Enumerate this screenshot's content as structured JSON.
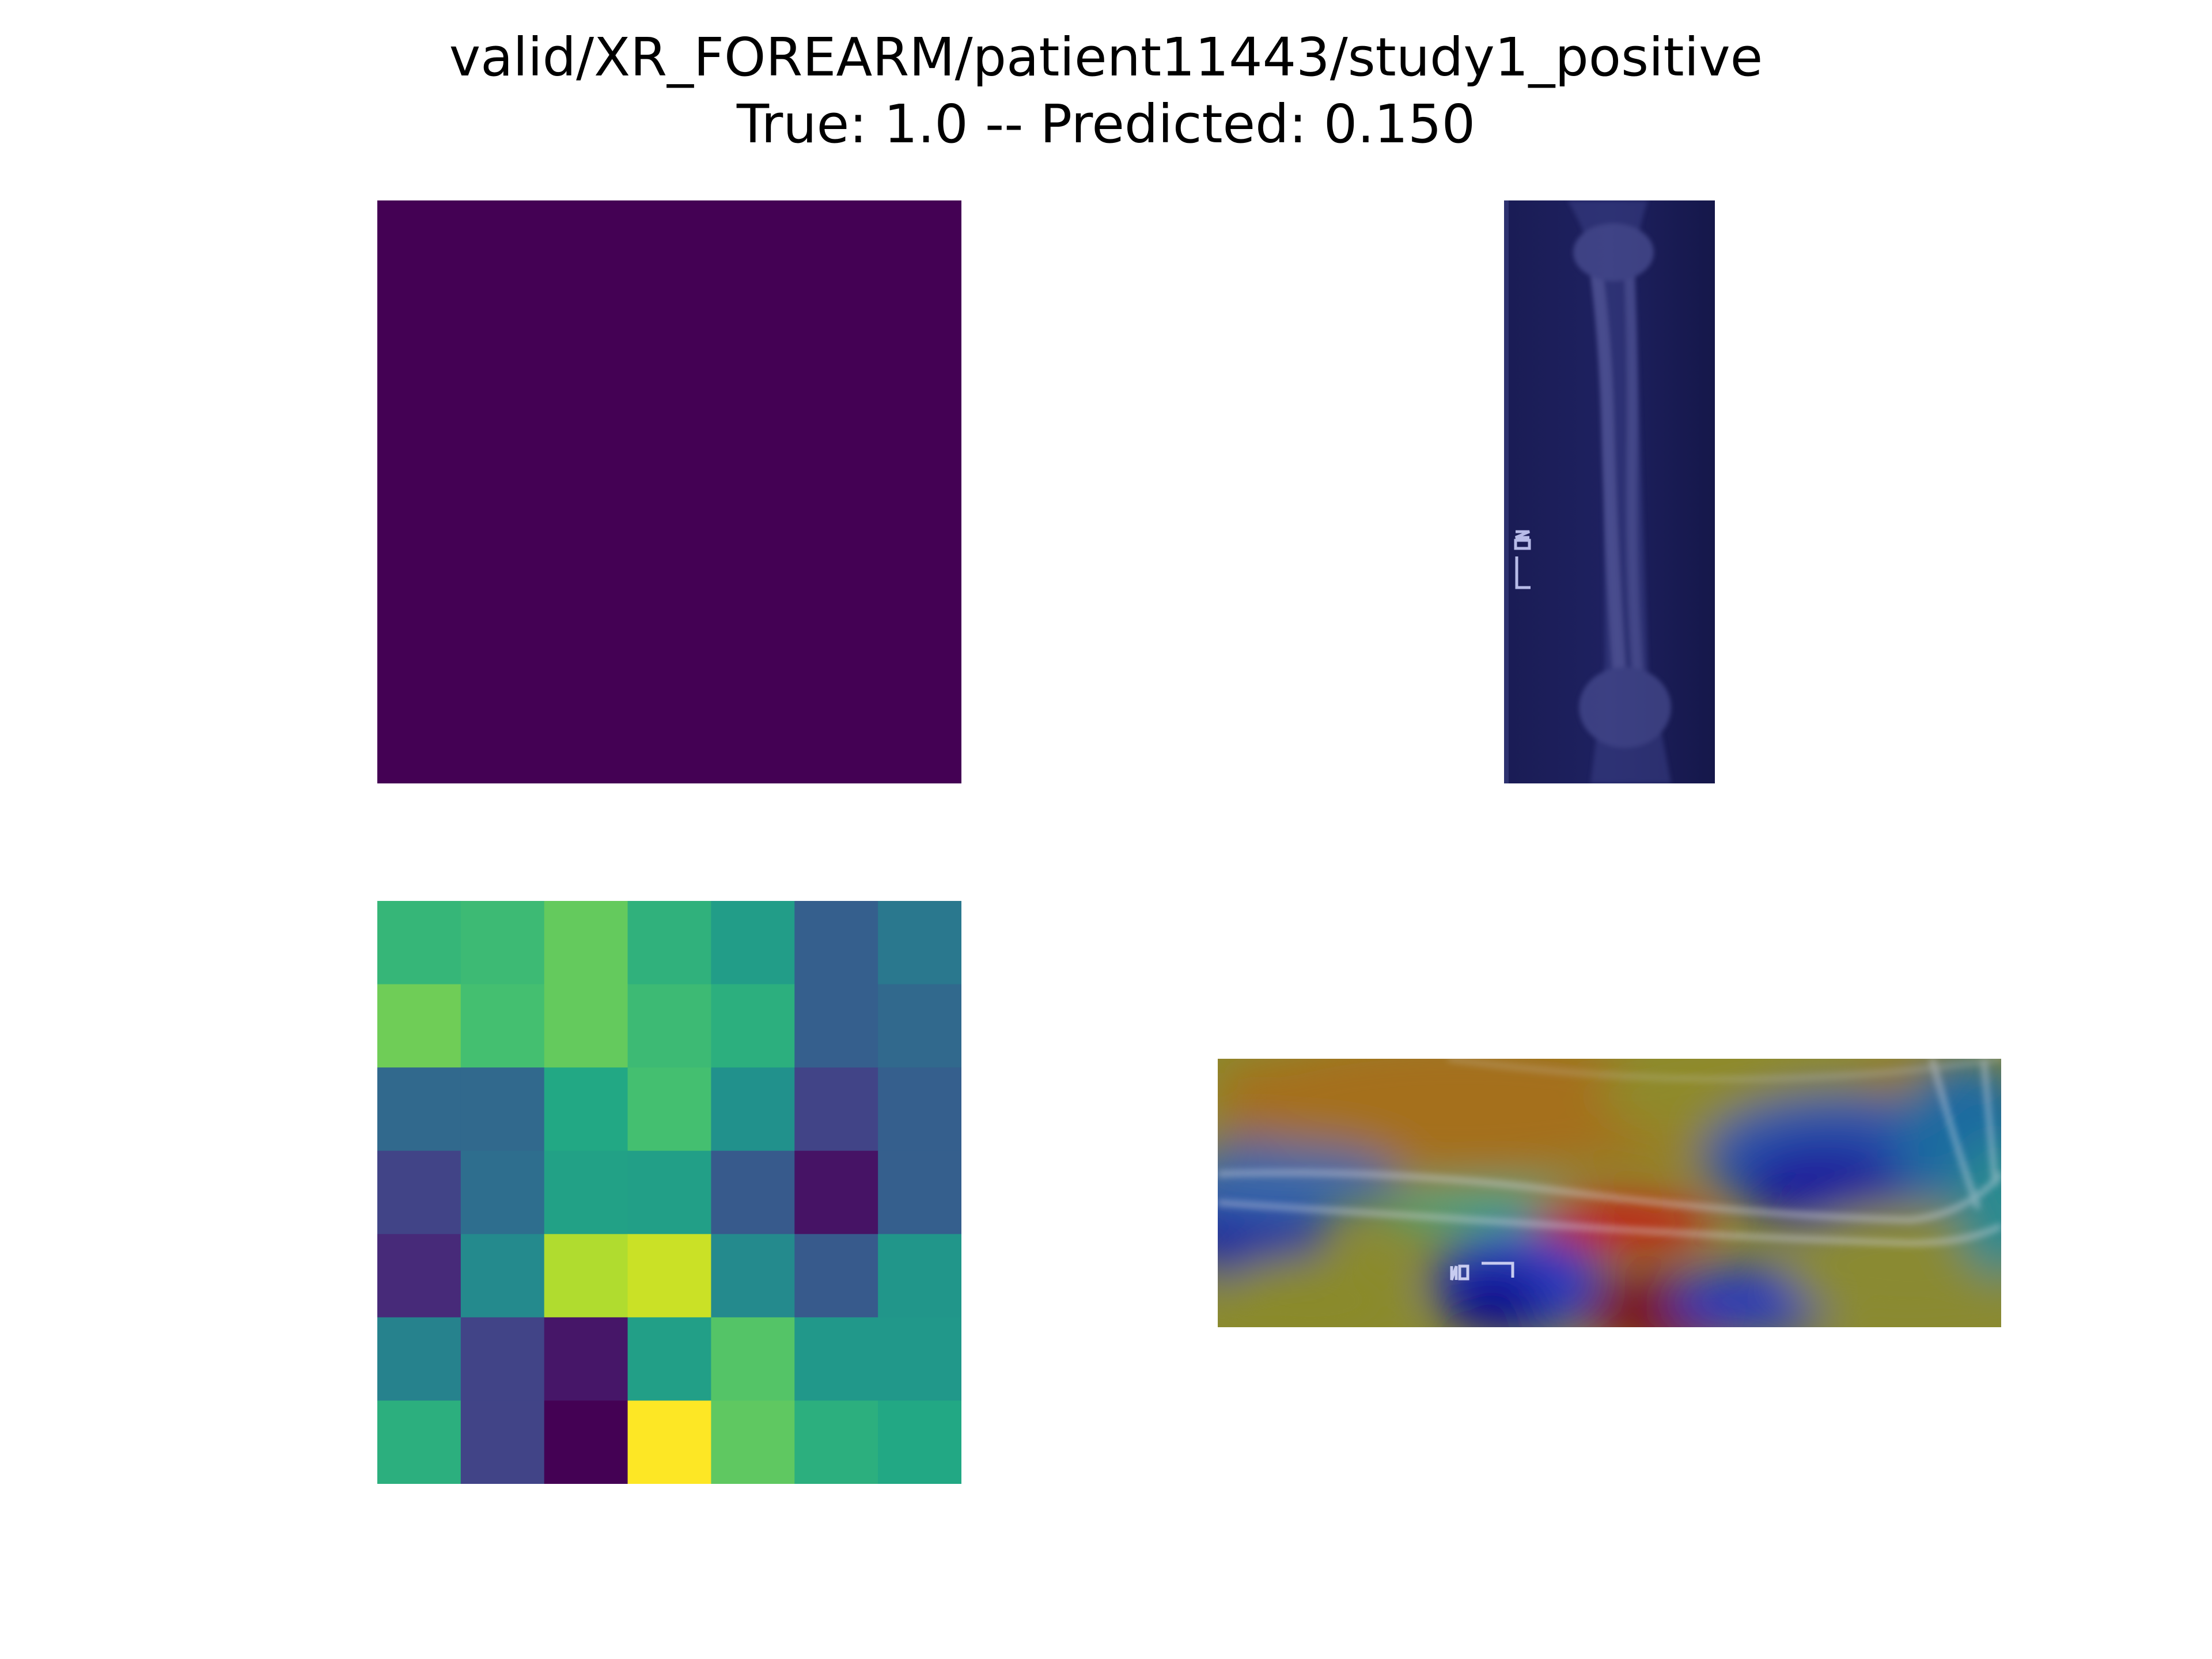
{
  "chart_data": {
    "type": "heatmap",
    "title": "valid/XR_FOREARM/patient11443/study1_positive",
    "subtitle": "True: 1.0 -- Predicted: 0.150",
    "grid": false,
    "colormap": "viridis",
    "panels": [
      {
        "type": "heatmap",
        "description": "uniform activation map",
        "uniform_color": "#440154"
      },
      {
        "type": "image",
        "description": "forearm x-ray (tinted)",
        "marker_text": "L 02"
      },
      {
        "type": "heatmap",
        "rows": 7,
        "cols": 7,
        "values": [
          [
            0.66,
            0.68,
            0.76,
            0.64,
            0.55,
            0.3,
            0.4
          ],
          [
            0.78,
            0.7,
            0.76,
            0.68,
            0.63,
            0.3,
            0.34
          ],
          [
            0.34,
            0.34,
            0.6,
            0.7,
            0.5,
            0.2,
            0.3
          ],
          [
            0.2,
            0.36,
            0.57,
            0.56,
            0.28,
            0.05,
            0.3
          ],
          [
            0.12,
            0.47,
            0.88,
            0.92,
            0.47,
            0.28,
            0.52
          ],
          [
            0.44,
            0.2,
            0.06,
            0.56,
            0.73,
            0.53,
            0.53
          ],
          [
            0.63,
            0.2,
            0.0,
            1.0,
            0.75,
            0.63,
            0.6
          ]
        ]
      },
      {
        "type": "image",
        "description": "jet class-activation overlay on rotated x-ray",
        "marker_text": "L 02"
      }
    ]
  }
}
